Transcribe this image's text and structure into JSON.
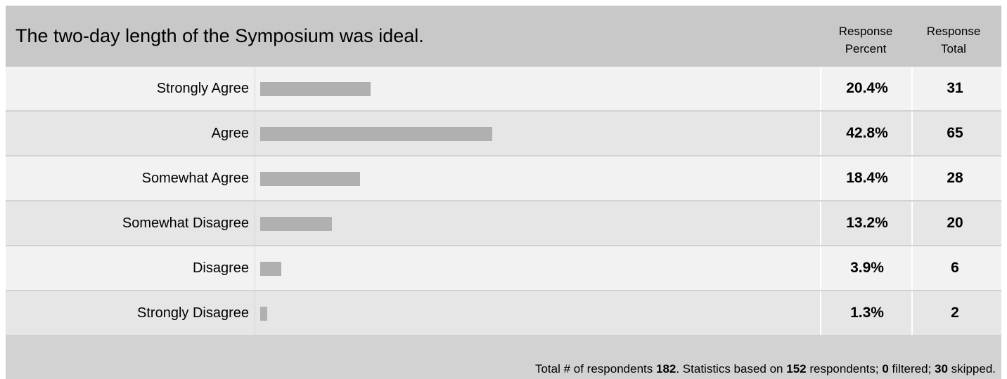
{
  "question": "The two-day length of the Symposium was ideal.",
  "headers": {
    "percent_line1": "Response",
    "percent_line2": "Percent",
    "total_line1": "Response",
    "total_line2": "Total"
  },
  "colors": {
    "bar": "#b0b0b0",
    "header": "#c8c8c8",
    "row_light": "#f2f2f2",
    "row_dark": "#e6e6e6"
  },
  "chart_data": {
    "type": "bar",
    "orientation": "horizontal",
    "categories": [
      "Strongly Agree",
      "Agree",
      "Somewhat Agree",
      "Somewhat Disagree",
      "Disagree",
      "Strongly Disagree"
    ],
    "percents": [
      20.4,
      42.8,
      18.4,
      13.2,
      3.9,
      1.3
    ],
    "percent_labels": [
      "20.4%",
      "42.8%",
      "18.4%",
      "13.2%",
      "3.9%",
      "1.3%"
    ],
    "totals": [
      "31",
      "65",
      "28",
      "20",
      "6",
      "2"
    ],
    "xlim": [
      0,
      100
    ]
  },
  "footer": {
    "t1": "Total # of respondents ",
    "respondents": "182",
    "t2": ". Statistics based on ",
    "based_on": "152",
    "t3": " respondents; ",
    "filtered": "0",
    "t4": " filtered; ",
    "skipped": "30",
    "t5": " skipped."
  }
}
